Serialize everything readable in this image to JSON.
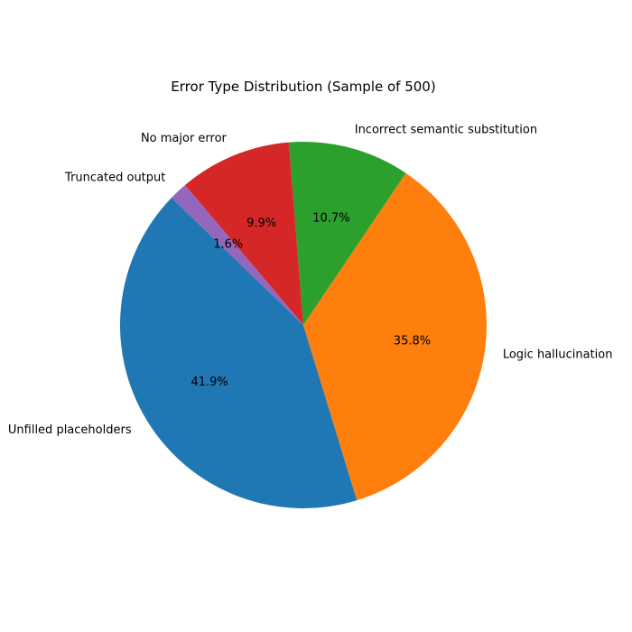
{
  "chart_data": {
    "type": "pie",
    "title": "Error Type Distribution (Sample of 500)",
    "start_angle_deg": 136,
    "direction": "counterclockwise",
    "legend": "none",
    "slices": [
      {
        "label": "Unfilled placeholders",
        "value": 41.9,
        "pct_text": "41.9%",
        "color": "#1f77b4"
      },
      {
        "label": "Logic hallucination",
        "value": 35.8,
        "pct_text": "35.8%",
        "color": "#ff7f0e"
      },
      {
        "label": "Incorrect semantic substitution",
        "value": 10.7,
        "pct_text": "10.7%",
        "color": "#2ca02c"
      },
      {
        "label": "No major error",
        "value": 9.9,
        "pct_text": "9.9%",
        "color": "#d62728"
      },
      {
        "label": "Truncated output",
        "value": 1.6,
        "pct_text": "1.6%",
        "color": "#9467bd"
      }
    ]
  }
}
